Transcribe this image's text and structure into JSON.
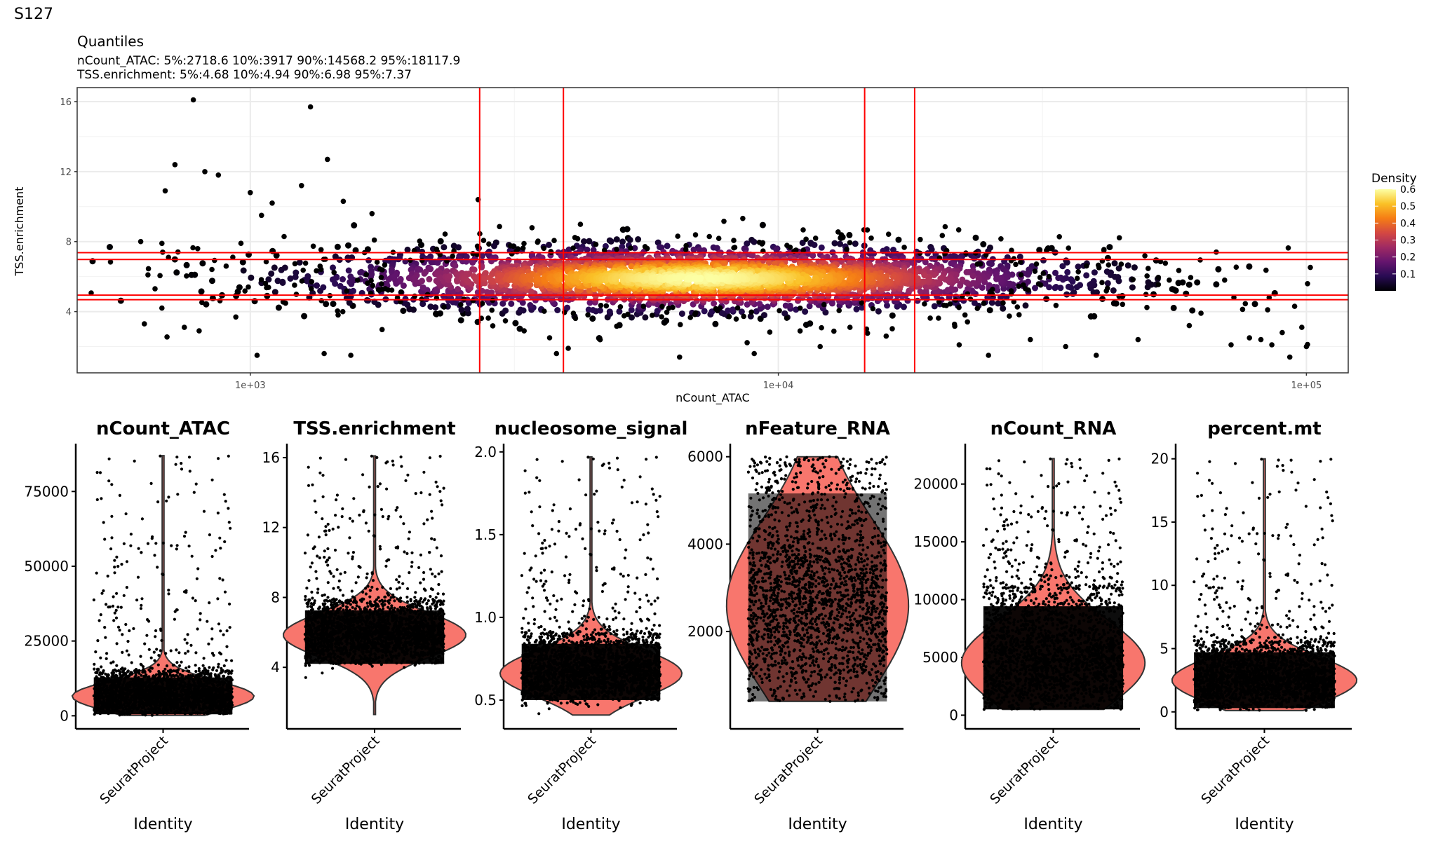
{
  "page_title": "S127",
  "chart_data": [
    {
      "type": "scatter",
      "title": "Quantiles",
      "subtitle_lines": [
        "nCount_ATAC: 5%:2718.6 10%:3917 90%:14568.2 95%:18117.9",
        "TSS.enrichment: 5%:4.68 10%:4.94 90%:6.98 95%:7.37"
      ],
      "xlabel": "nCount_ATAC",
      "ylabel": "TSS.enrichment",
      "x_scale": "log10",
      "xlim": [
        470,
        120000
      ],
      "ylim": [
        0.5,
        16.8
      ],
      "x_ticks": [
        {
          "value": 1000,
          "label": "1e+03"
        },
        {
          "value": 10000,
          "label": "1e+04"
        },
        {
          "value": 100000,
          "label": "1e+05"
        }
      ],
      "y_ticks": [
        {
          "value": 4,
          "label": "4"
        },
        {
          "value": 8,
          "label": "8"
        },
        {
          "value": 12,
          "label": "12"
        },
        {
          "value": 16,
          "label": "16"
        }
      ],
      "grid": true,
      "vlines": [
        2718.6,
        3917,
        14568.2,
        18117.9
      ],
      "hlines": [
        4.68,
        4.94,
        6.98,
        7.37
      ],
      "line_color": "#ff0000",
      "density_center": {
        "x_log10": 3.85,
        "y": 5.9
      },
      "legend": {
        "title": "Density",
        "placement": "right",
        "range": [
          0,
          0.6
        ],
        "ticks": [
          "0.1",
          "0.2",
          "0.3",
          "0.4",
          "0.5",
          "0.6"
        ],
        "colors": [
          "#000004",
          "#280b53",
          "#65156e",
          "#9f2a63",
          "#d44842",
          "#f57d15",
          "#fac127",
          "#fcffa4"
        ]
      },
      "outliers": [
        [
          620,
          8.0
        ],
        [
          640,
          6.1
        ],
        [
          660,
          5.3
        ],
        [
          690,
          10.9
        ],
        [
          700,
          7.1
        ],
        [
          720,
          12.4
        ],
        [
          780,
          16.1
        ],
        [
          820,
          12.0
        ],
        [
          870,
          11.8
        ],
        [
          630,
          3.3
        ],
        [
          680,
          4.2
        ],
        [
          750,
          3.1
        ],
        [
          800,
          2.9
        ],
        [
          900,
          6.6
        ],
        [
          960,
          7.9
        ],
        [
          1000,
          10.8
        ],
        [
          1050,
          9.5
        ],
        [
          1100,
          10.2
        ],
        [
          1300,
          15.7
        ],
        [
          1400,
          12.7
        ],
        [
          1250,
          11.2
        ],
        [
          1500,
          10.3
        ],
        [
          1700,
          9.6
        ],
        [
          1030,
          1.5
        ],
        [
          1380,
          1.6
        ],
        [
          1550,
          1.5
        ],
        [
          2700,
          10.4
        ],
        [
          3300,
          2.9
        ],
        [
          3800,
          1.6
        ],
        [
          4000,
          1.9
        ],
        [
          6500,
          1.4
        ],
        [
          9000,
          1.6
        ],
        [
          12000,
          2.0
        ],
        [
          16000,
          2.6
        ],
        [
          22000,
          2.1
        ],
        [
          25000,
          1.5
        ],
        [
          30000,
          2.4
        ],
        [
          35000,
          2.0
        ],
        [
          40000,
          1.5
        ],
        [
          48000,
          2.4
        ],
        [
          55000,
          5.8
        ],
        [
          70000,
          5.8
        ],
        [
          72000,
          2.1
        ],
        [
          78000,
          2.5
        ],
        [
          82000,
          2.4
        ],
        [
          86000,
          2.1
        ],
        [
          90000,
          2.8
        ],
        [
          95000,
          4.3
        ],
        [
          93000,
          1.4
        ],
        [
          98000,
          3.1
        ],
        [
          100000,
          2.0
        ],
        [
          85000,
          4.8
        ],
        [
          60000,
          3.2
        ]
      ]
    },
    {
      "type": "violin",
      "title": "nCount_ATAC",
      "xlabel": "Identity",
      "category": "SeuratProject",
      "ylim": [
        -2500,
        91000
      ],
      "y_ticks": [
        0,
        25000,
        50000,
        75000
      ],
      "range": [
        150,
        87000
      ],
      "mode": 6500,
      "bulk": [
        500,
        15000
      ]
    },
    {
      "type": "violin",
      "title": "TSS.enrichment",
      "xlabel": "Identity",
      "category": "SeuratProject",
      "ylim": [
        0.8,
        16.8
      ],
      "y_ticks": [
        4,
        8,
        12,
        16
      ],
      "range": [
        1.3,
        16.1
      ],
      "mode": 5.85,
      "bulk": [
        4.2,
        7.8
      ]
    },
    {
      "type": "violin",
      "title": "nucleosome_signal",
      "xlabel": "Identity",
      "category": "SeuratProject",
      "ylim": [
        0.36,
        2.05
      ],
      "y_ticks": [
        0.5,
        1.0,
        1.5,
        2.0
      ],
      "range": [
        0.41,
        1.97
      ],
      "mode": 0.66,
      "bulk": [
        0.5,
        0.9
      ]
    },
    {
      "type": "violin",
      "title": "nFeature_RNA",
      "xlabel": "Identity",
      "category": "SeuratProject",
      "ylim": [
        -100,
        6300
      ],
      "y_ticks": [
        2000,
        4000,
        6000
      ],
      "range": [
        400,
        6000
      ],
      "mode": 2600,
      "bulk": [
        400,
        6000
      ]
    },
    {
      "type": "violin",
      "title": "nCount_RNA",
      "xlabel": "Identity",
      "category": "SeuratProject",
      "ylim": [
        -700,
        23500
      ],
      "y_ticks": [
        0,
        5000,
        10000,
        15000,
        20000
      ],
      "range": [
        500,
        22200
      ],
      "mode": 4500,
      "bulk": [
        500,
        11000
      ]
    },
    {
      "type": "violin",
      "title": "percent.mt",
      "xlabel": "Identity",
      "category": "SeuratProject",
      "ylim": [
        -0.9,
        21.2
      ],
      "y_ticks": [
        0,
        5,
        10,
        15,
        20
      ],
      "range": [
        0.1,
        20.0
      ],
      "mode": 2.5,
      "bulk": [
        0.3,
        5.5
      ]
    }
  ]
}
